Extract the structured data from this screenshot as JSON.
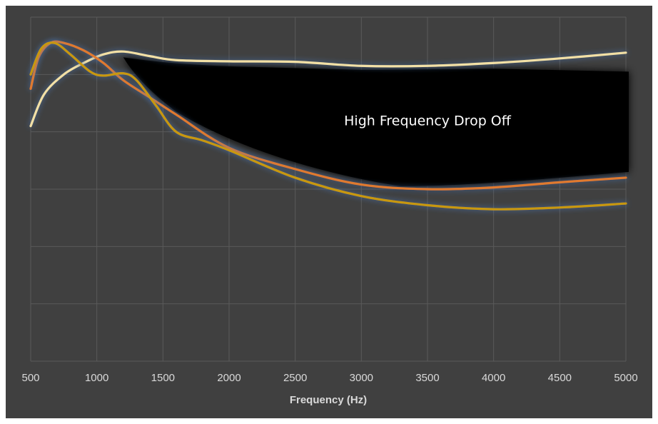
{
  "chart_data": {
    "type": "line",
    "xlabel": "Frequency (Hz)",
    "ylabel": "",
    "xlim": [
      500,
      5000
    ],
    "ylim": [
      0,
      6
    ],
    "grid": true,
    "legend": "none",
    "x_ticks": [
      500,
      1000,
      1500,
      2000,
      2500,
      3000,
      3500,
      4000,
      4500,
      5000
    ],
    "x_tick_labels": [
      "500",
      "1000",
      "1500",
      "2000",
      "2500",
      "3000",
      "3500",
      "4000",
      "4500",
      "5000"
    ],
    "y_ticks": [
      0,
      1,
      2,
      3,
      4,
      5,
      6
    ],
    "annotation": {
      "text": "High Frequency Drop Off",
      "x": 3500,
      "y": 4.2
    },
    "colors": {
      "background": "#404040",
      "outer_frame": "#ffffff",
      "grid": "#5a5a5a",
      "tick_text": "#d9d9d9",
      "annotation_fill": "#000000",
      "annotation_text": "#ffffff",
      "glow": "#4a78b8"
    },
    "series": [
      {
        "color": "#f2e0a6",
        "points": [
          [
            500,
            4.1
          ],
          [
            600,
            4.65
          ],
          [
            750,
            5.0
          ],
          [
            900,
            5.2
          ],
          [
            1050,
            5.35
          ],
          [
            1200,
            5.4
          ],
          [
            1400,
            5.32
          ],
          [
            1600,
            5.25
          ],
          [
            2000,
            5.23
          ],
          [
            2500,
            5.22
          ],
          [
            3000,
            5.15
          ],
          [
            3500,
            5.15
          ],
          [
            4000,
            5.2
          ],
          [
            4500,
            5.28
          ],
          [
            5000,
            5.38
          ]
        ]
      },
      {
        "color": "#e07a2e",
        "points": [
          [
            500,
            4.75
          ],
          [
            560,
            5.3
          ],
          [
            650,
            5.55
          ],
          [
            750,
            5.55
          ],
          [
            900,
            5.42
          ],
          [
            1050,
            5.2
          ],
          [
            1200,
            4.9
          ],
          [
            1400,
            4.6
          ],
          [
            1600,
            4.3
          ],
          [
            2000,
            3.72
          ],
          [
            2500,
            3.35
          ],
          [
            3000,
            3.08
          ],
          [
            3500,
            3.0
          ],
          [
            4000,
            3.03
          ],
          [
            4500,
            3.12
          ],
          [
            5000,
            3.2
          ]
        ]
      },
      {
        "color": "#c8980e",
        "points": [
          [
            500,
            5.0
          ],
          [
            580,
            5.45
          ],
          [
            680,
            5.55
          ],
          [
            800,
            5.35
          ],
          [
            950,
            5.05
          ],
          [
            1050,
            4.98
          ],
          [
            1200,
            5.02
          ],
          [
            1300,
            4.9
          ],
          [
            1450,
            4.45
          ],
          [
            1600,
            4.0
          ],
          [
            1800,
            3.85
          ],
          [
            2000,
            3.68
          ],
          [
            2500,
            3.2
          ],
          [
            3000,
            2.88
          ],
          [
            3500,
            2.72
          ],
          [
            4000,
            2.65
          ],
          [
            4500,
            2.68
          ],
          [
            5000,
            2.75
          ]
        ]
      }
    ]
  }
}
